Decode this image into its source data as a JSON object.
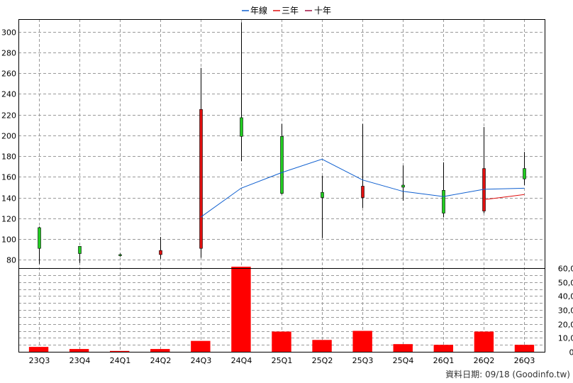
{
  "chart_data": {
    "type": "candlestick+bar",
    "categories": [
      "23Q3",
      "23Q4",
      "24Q1",
      "24Q2",
      "24Q3",
      "24Q4",
      "25Q1",
      "25Q2",
      "25Q3",
      "25Q4",
      "26Q1",
      "26Q2",
      "26Q3"
    ],
    "price_panel": {
      "ylim": [
        72,
        312
      ],
      "yticks": [
        80,
        100,
        120,
        140,
        160,
        180,
        200,
        220,
        240,
        260,
        280,
        300
      ],
      "candles": [
        {
          "open": 91,
          "close": 111,
          "high": 112,
          "low": 76
        },
        {
          "open": 86,
          "close": 93,
          "high": 93,
          "low": 77
        },
        {
          "open": 84,
          "close": 85,
          "high": 86,
          "low": 83
        },
        {
          "open": 89,
          "close": 85,
          "high": 102,
          "low": 81
        },
        {
          "open": 225,
          "close": 91,
          "high": 265,
          "low": 82
        },
        {
          "open": 199,
          "close": 217,
          "high": 309,
          "low": 175
        },
        {
          "open": 144,
          "close": 199,
          "high": 211,
          "low": 143
        },
        {
          "open": 140,
          "close": 145,
          "high": 161,
          "low": 101
        },
        {
          "open": 151,
          "close": 140,
          "high": 211,
          "low": 130
        },
        {
          "open": 150,
          "close": 152,
          "high": 171,
          "low": 137
        },
        {
          "open": 125,
          "close": 147,
          "high": 174,
          "low": 121
        },
        {
          "open": 168,
          "close": 127,
          "high": 208,
          "low": 125
        },
        {
          "open": 158,
          "close": 168,
          "high": 184,
          "low": 152
        }
      ],
      "colors": {
        "up": "#22cc22",
        "down": "#e01010"
      },
      "series": [
        {
          "name": "年線",
          "color": "#1060d0",
          "values": [
            null,
            null,
            null,
            null,
            121,
            149,
            164,
            177,
            157,
            146,
            141,
            148,
            149
          ]
        },
        {
          "name": "三年",
          "color": "#e01010",
          "values": [
            null,
            null,
            null,
            null,
            null,
            null,
            null,
            null,
            null,
            null,
            null,
            138,
            143
          ]
        },
        {
          "name": "十年",
          "color": "#a01040",
          "values": [
            null,
            null,
            null,
            null,
            null,
            null,
            null,
            null,
            null,
            null,
            null,
            null,
            null
          ]
        }
      ]
    },
    "volume_panel": {
      "ylim": [
        0,
        60000
      ],
      "yticks": [
        0,
        10000,
        20000,
        30000,
        40000,
        50000,
        60000
      ],
      "ytick_labels": [
        "0",
        "10,000",
        "20,000",
        "30,000",
        "40,000",
        "50,000",
        "60,000"
      ],
      "color": "#ff0000",
      "values": [
        3500,
        2000,
        600,
        2000,
        7800,
        61000,
        14500,
        8500,
        15000,
        5500,
        5000,
        14500,
        5000
      ]
    }
  },
  "legend": {
    "items": [
      "年線",
      "三年",
      "十年"
    ]
  },
  "source_note": "資料日期: 09/18  (Goodinfo.tw)"
}
